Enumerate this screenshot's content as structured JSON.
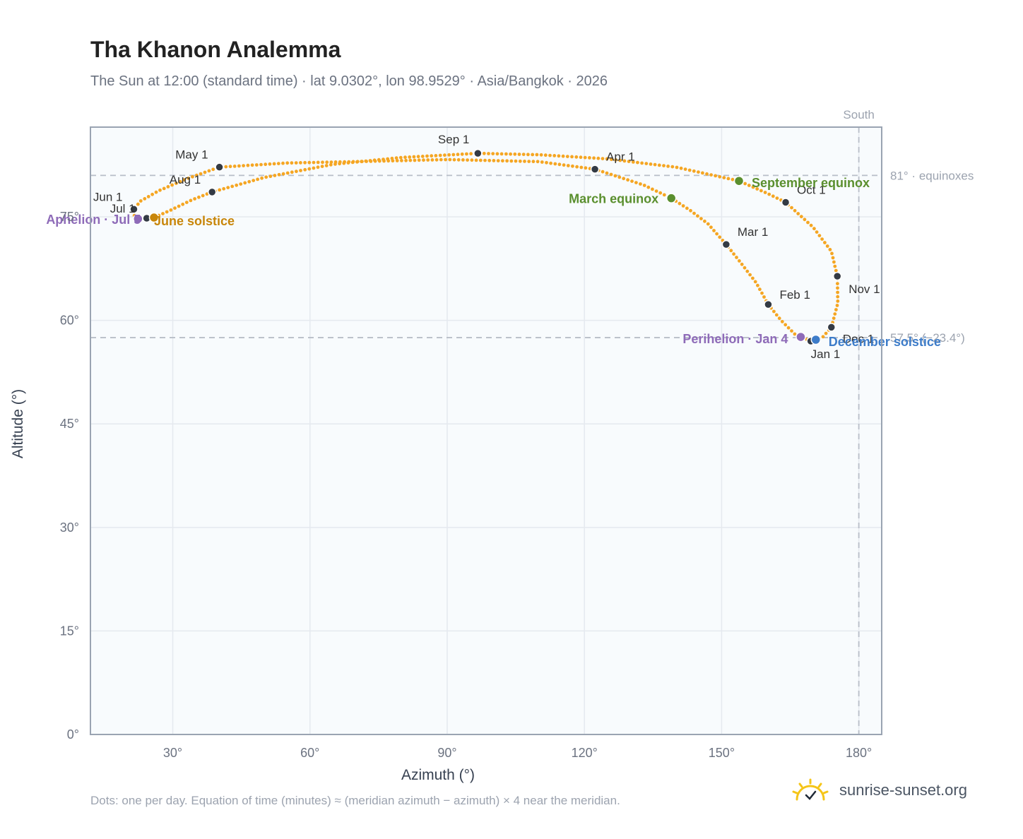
{
  "header": {
    "title": "Tha Khanon Analemma",
    "subtitle": "The Sun at 12:00 (standard time) · lat 9.0302°, lon 98.9529° · Asia/Bangkok · 2026"
  },
  "footer": {
    "note": "Dots: one per day. Equation of time (minutes) ≈ (meridian azimuth − azimuth) × 4 near the meridian.",
    "brand": "sunrise-sunset.org"
  },
  "colors": {
    "curve": "#f5a623",
    "month_marker": "#333a44",
    "equinox": "#5a8f2e",
    "solstice_june": "#c8860a",
    "solstice_december": "#3d7cc9",
    "apsis": "#8e6bb8",
    "plot_background": "#f8fbfd",
    "grid": "#e5e9ef",
    "reference": "#b8bec8"
  },
  "chart_data": {
    "type": "scatter",
    "xlabel": "Azimuth (°)",
    "ylabel": "Altitude (°)",
    "xlim": [
      12,
      185
    ],
    "ylim": [
      0,
      88
    ],
    "x_ticks": [
      30,
      60,
      90,
      120,
      150,
      180
    ],
    "x_tick_labels": [
      "30°",
      "60°",
      "90°",
      "120°",
      "150°",
      "180°"
    ],
    "y_ticks": [
      0,
      15,
      30,
      45,
      60,
      75
    ],
    "y_tick_labels": [
      "0°",
      "15°",
      "30°",
      "45°",
      "60°",
      "75°"
    ],
    "grid": true,
    "reference_lines": {
      "south": {
        "azimuth": 180,
        "label": "South"
      },
      "equinox": {
        "altitude": 81,
        "label": "81° · equinoxes"
      },
      "december_solstice": {
        "altitude": 57.5,
        "label": "57.5° (−23.4°)"
      }
    },
    "months": [
      {
        "label": "Jan 1",
        "az": 169.5,
        "alt": 57.0
      },
      {
        "label": "Feb 1",
        "az": 160.2,
        "alt": 62.3
      },
      {
        "label": "Mar 1",
        "az": 151.0,
        "alt": 71.0
      },
      {
        "label": "Apr 1",
        "az": 122.3,
        "alt": 81.9
      },
      {
        "label": "May 1",
        "az": 40.2,
        "alt": 82.2
      },
      {
        "label": "Jun 1",
        "az": 21.5,
        "alt": 76.1
      },
      {
        "label": "Jul 1",
        "az": 24.3,
        "alt": 74.8
      },
      {
        "label": "Aug 1",
        "az": 38.6,
        "alt": 78.6
      },
      {
        "label": "Sep 1",
        "az": 96.7,
        "alt": 84.2
      },
      {
        "label": "Oct 1",
        "az": 164.0,
        "alt": 77.1
      },
      {
        "label": "Nov 1",
        "az": 175.3,
        "alt": 66.4
      },
      {
        "label": "Dec 1",
        "az": 174.0,
        "alt": 59.0
      }
    ],
    "events": [
      {
        "label": "March equinox",
        "az": 139.0,
        "alt": 77.7,
        "kind": "equinox"
      },
      {
        "label": "September equinox",
        "az": 153.8,
        "alt": 80.2,
        "kind": "equinox"
      },
      {
        "label": "June solstice",
        "az": 25.9,
        "alt": 74.9,
        "kind": "solstice_june"
      },
      {
        "label": "December solstice",
        "az": 170.6,
        "alt": 57.2,
        "kind": "solstice_december"
      },
      {
        "label": "Perihelion · Jan 4",
        "az": 167.3,
        "alt": 57.6,
        "kind": "apsis"
      },
      {
        "label": "Aphelion · Jul 5",
        "az": 22.4,
        "alt": 74.7,
        "kind": "apsis"
      }
    ],
    "path": [
      [
        169.5,
        57.0
      ],
      [
        166.0,
        58.0
      ],
      [
        163.0,
        60.0
      ],
      [
        160.2,
        62.3
      ],
      [
        157.5,
        65.5
      ],
      [
        154.0,
        68.5
      ],
      [
        151.0,
        71.0
      ],
      [
        147.0,
        74.0
      ],
      [
        143.0,
        76.0
      ],
      [
        139.0,
        77.7
      ],
      [
        133.0,
        79.6
      ],
      [
        122.3,
        81.9
      ],
      [
        110.0,
        83.0
      ],
      [
        90.0,
        83.3
      ],
      [
        70.0,
        83.0
      ],
      [
        55.0,
        82.8
      ],
      [
        40.2,
        82.2
      ],
      [
        33.0,
        80.5
      ],
      [
        27.0,
        78.8
      ],
      [
        23.0,
        77.3
      ],
      [
        21.5,
        76.1
      ],
      [
        21.4,
        75.3
      ],
      [
        22.4,
        74.7
      ],
      [
        24.3,
        74.8
      ],
      [
        25.9,
        74.9
      ],
      [
        29.0,
        75.8
      ],
      [
        34.0,
        77.4
      ],
      [
        38.6,
        78.6
      ],
      [
        50.0,
        80.7
      ],
      [
        65.0,
        82.6
      ],
      [
        80.0,
        83.6
      ],
      [
        96.7,
        84.2
      ],
      [
        110.0,
        84.0
      ],
      [
        125.0,
        83.4
      ],
      [
        140.0,
        82.2
      ],
      [
        153.8,
        80.2
      ],
      [
        160.0,
        78.4
      ],
      [
        164.0,
        77.1
      ],
      [
        170.0,
        73.5
      ],
      [
        174.0,
        70.0
      ],
      [
        175.3,
        66.4
      ],
      [
        175.4,
        62.5
      ],
      [
        174.0,
        59.0
      ],
      [
        172.0,
        57.5
      ],
      [
        169.5,
        57.0
      ]
    ]
  }
}
